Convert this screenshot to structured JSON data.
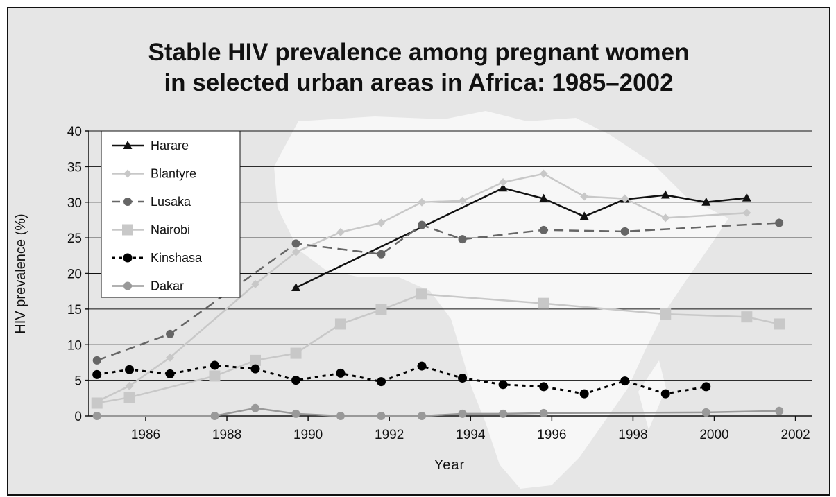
{
  "chart_data": {
    "type": "line",
    "title_lines": [
      "Stable HIV prevalence among pregnant women",
      "in selected urban areas in Africa: 1985–2002"
    ],
    "xlabel": "Year",
    "ylabel": "HIV prevalence (%)",
    "xlim": [
      1984.6,
      2002.4
    ],
    "ylim": [
      0,
      40
    ],
    "x_ticks": [
      "1986",
      "1988",
      "1990",
      "1992",
      "1994",
      "1996",
      "1998",
      "2000",
      "2002"
    ],
    "y_ticks": [
      "0",
      "5",
      "10",
      "15",
      "20",
      "25",
      "30",
      "35",
      "40"
    ],
    "grid": true,
    "legend_position": "top-left",
    "series": [
      {
        "name": "Harare",
        "color": "#111111",
        "dash": "solid",
        "marker": "triangle",
        "points": [
          [
            1989.7,
            18
          ],
          [
            1994.8,
            32
          ],
          [
            1995.8,
            30.5
          ],
          [
            1996.8,
            28
          ],
          [
            1997.8,
            30.4
          ],
          [
            1998.8,
            31
          ],
          [
            1999.8,
            30
          ],
          [
            2000.8,
            30.6
          ]
        ]
      },
      {
        "name": "Blantyre",
        "color": "#c8c8c8",
        "dash": "solid",
        "marker": "diamond",
        "points": [
          [
            1984.8,
            2
          ],
          [
            1985.6,
            4.2
          ],
          [
            1986.6,
            8.2
          ],
          [
            1988.7,
            18.5
          ],
          [
            1989.7,
            23
          ],
          [
            1990.8,
            25.8
          ],
          [
            1991.8,
            27.1
          ],
          [
            1992.8,
            30
          ],
          [
            1993.8,
            30.2
          ],
          [
            1994.8,
            32.8
          ],
          [
            1995.8,
            34
          ],
          [
            1996.8,
            30.8
          ],
          [
            1997.8,
            30.5
          ],
          [
            1998.8,
            27.8
          ],
          [
            2000.8,
            28.5
          ]
        ]
      },
      {
        "name": "Lusaka",
        "color": "#666666",
        "dash": "dashed",
        "marker": "circle",
        "points": [
          [
            1984.8,
            7.8
          ],
          [
            1986.6,
            11.5
          ],
          [
            1989.7,
            24.2
          ],
          [
            1991.8,
            22.7
          ],
          [
            1992.8,
            26.8
          ],
          [
            1993.8,
            24.8
          ],
          [
            1995.8,
            26.1
          ],
          [
            1997.8,
            25.9
          ],
          [
            2001.6,
            27.1
          ]
        ]
      },
      {
        "name": "Nairobi",
        "color": "#c8c8c8",
        "dash": "solid",
        "marker": "square",
        "points": [
          [
            1984.8,
            1.8
          ],
          [
            1985.6,
            2.6
          ],
          [
            1987.7,
            5.6
          ],
          [
            1988.7,
            7.8
          ],
          [
            1989.7,
            8.8
          ],
          [
            1990.8,
            12.9
          ],
          [
            1991.8,
            14.9
          ],
          [
            1992.8,
            17.1
          ],
          [
            1995.8,
            15.8
          ],
          [
            1998.8,
            14.3
          ],
          [
            2000.8,
            13.9
          ],
          [
            2001.6,
            12.9
          ]
        ]
      },
      {
        "name": "Kinshasa",
        "color": "#000000",
        "dash": "dotted",
        "marker": "bigcircle",
        "points": [
          [
            1984.8,
            5.8
          ],
          [
            1985.6,
            6.5
          ],
          [
            1986.6,
            5.9
          ],
          [
            1987.7,
            7.1
          ],
          [
            1988.7,
            6.6
          ],
          [
            1989.7,
            5
          ],
          [
            1990.8,
            6
          ],
          [
            1991.8,
            4.8
          ],
          [
            1992.8,
            7
          ],
          [
            1993.8,
            5.3
          ],
          [
            1994.8,
            4.4
          ],
          [
            1995.8,
            4.1
          ],
          [
            1996.8,
            3.1
          ],
          [
            1997.8,
            4.9
          ],
          [
            1998.8,
            3.1
          ],
          [
            1999.8,
            4.1
          ]
        ]
      },
      {
        "name": "Dakar",
        "color": "#999999",
        "dash": "solid",
        "marker": "circle",
        "points": [
          [
            1984.8,
            0
          ],
          [
            1987.7,
            0
          ],
          [
            1988.7,
            1.1
          ],
          [
            1989.7,
            0.3
          ],
          [
            1990.8,
            0
          ],
          [
            1991.8,
            0
          ],
          [
            1992.8,
            0
          ],
          [
            1993.8,
            0.3
          ],
          [
            1994.8,
            0.3
          ],
          [
            1995.8,
            0.4
          ],
          [
            1999.8,
            0.5
          ],
          [
            2001.6,
            0.7
          ]
        ]
      }
    ]
  }
}
